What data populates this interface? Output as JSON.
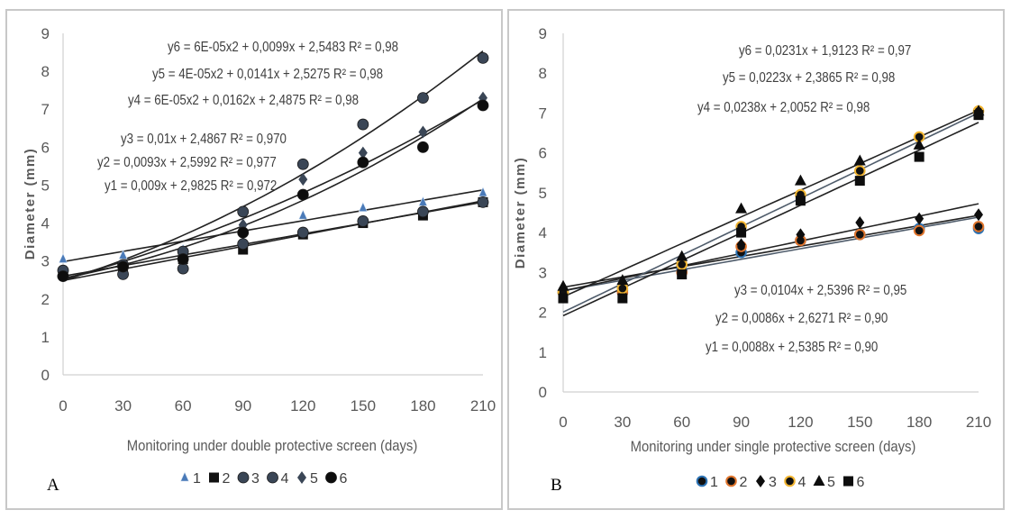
{
  "panels": [
    {
      "letter": "A",
      "xlabel": "Monitoring under double protective screen (days)",
      "ylabel": "Diameter (mm)",
      "legend_labels": [
        "1",
        "2",
        "3",
        "4",
        "5",
        "6"
      ]
    },
    {
      "letter": "B",
      "xlabel": "Monitoring under single protective screen (days)",
      "ylabel": "Diameter (mm)",
      "legend_labels": [
        "1",
        "2",
        "3",
        "4",
        "5",
        "6"
      ]
    }
  ],
  "chart_data": [
    {
      "type": "scatter",
      "title": "",
      "xlabel": "Monitoring under double protective screen (days)",
      "ylabel": "Diameter (mm)",
      "xlim": [
        0,
        210
      ],
      "ylim": [
        0,
        9
      ],
      "xticks": [
        0,
        30,
        60,
        90,
        120,
        150,
        180,
        210
      ],
      "yticks": [
        0,
        1,
        2,
        3,
        4,
        5,
        6,
        7,
        8,
        9
      ],
      "grid": false,
      "legend_position": "bottom",
      "x": [
        0,
        30,
        60,
        90,
        120,
        150,
        180,
        210
      ],
      "series": [
        {
          "name": "1",
          "marker": "triangle-small",
          "color": "#4a7ab8",
          "values": [
            3.05,
            3.15,
            3.3,
            3.75,
            4.2,
            4.4,
            4.55,
            4.8
          ],
          "trendline": {
            "type": "linear",
            "coef": [
              0.009,
              2.9825
            ]
          },
          "equation": "y1 = 0,009x + 2,9825 R² = 0,972"
        },
        {
          "name": "2",
          "marker": "square",
          "color": "#111111",
          "values": [
            2.7,
            2.8,
            3.05,
            3.3,
            3.7,
            4.0,
            4.2,
            4.55
          ],
          "trendline": {
            "type": "linear",
            "coef": [
              0.0093,
              2.5992
            ]
          },
          "equation": "y2 = 0,0093x + 2,5992 R² = 0,977"
        },
        {
          "name": "3",
          "marker": "circle",
          "color": "#3a4656",
          "values": [
            2.75,
            2.65,
            2.8,
            3.45,
            3.75,
            4.05,
            4.3,
            4.55
          ],
          "trendline": {
            "type": "linear",
            "coef": [
              0.01,
              2.4867
            ]
          },
          "equation": "y3 = 0,01x + 2,4867 R² = 0,970"
        },
        {
          "name": "4",
          "marker": "circle",
          "color": "#3a4656",
          "values": [
            2.6,
            2.9,
            3.25,
            4.3,
            5.55,
            6.6,
            7.3,
            8.35
          ],
          "trendline": {
            "type": "poly2",
            "coef": [
              6e-05,
              0.0162,
              2.4875
            ]
          },
          "equation": "y4 = 6E-05x2 + 0,0162x + 2,4875 R² = 0,98"
        },
        {
          "name": "5",
          "marker": "diamond",
          "color": "#3a4656",
          "values": [
            2.65,
            2.85,
            3.15,
            3.95,
            5.15,
            5.85,
            6.4,
            7.3
          ],
          "trendline": {
            "type": "poly2",
            "coef": [
              4e-05,
              0.0141,
              2.5275
            ]
          },
          "equation": "y5 = 4E-05x2 + 0,0141x + 2,5275 R² = 0,98"
        },
        {
          "name": "6",
          "marker": "circle",
          "color": "#0d0d0d",
          "values": [
            2.6,
            2.85,
            3.05,
            3.75,
            4.75,
            5.6,
            6.0,
            7.1
          ],
          "trendline": {
            "type": "poly2",
            "coef": [
              6e-05,
              0.0099,
              2.5483
            ]
          },
          "equation": "y6 = 6E-05x2 + 0,0099x + 2,5483 R² = 0,98"
        }
      ]
    },
    {
      "type": "scatter",
      "title": "",
      "xlabel": "Monitoring under single protective screen (days)",
      "ylabel": "Diameter (mm)",
      "xlim": [
        0,
        210
      ],
      "ylim": [
        0,
        9
      ],
      "xticks": [
        0,
        30,
        60,
        90,
        120,
        150,
        180,
        210
      ],
      "yticks": [
        0,
        1,
        2,
        3,
        4,
        5,
        6,
        7,
        8,
        9
      ],
      "grid": false,
      "legend_position": "bottom",
      "x": [
        0,
        30,
        60,
        90,
        120,
        150,
        180,
        210
      ],
      "series": [
        {
          "name": "1",
          "marker": "circle-ring",
          "color": "#2e74b5",
          "values": [
            2.5,
            2.55,
            3.05,
            3.5,
            3.8,
            3.95,
            4.1,
            4.1
          ],
          "trendline": {
            "type": "linear",
            "coef": [
              0.0088,
              2.5385
            ]
          },
          "equation": "y1 = 0,0088x + 2,5385  R² = 0,90"
        },
        {
          "name": "2",
          "marker": "circle-ring",
          "color": "#e0752d",
          "values": [
            2.5,
            2.5,
            3.0,
            3.65,
            3.8,
            3.95,
            4.05,
            4.15
          ],
          "trendline": {
            "type": "linear",
            "coef": [
              0.0086,
              2.6271
            ]
          },
          "equation": "y2 = 0,0086x + 2,6271 R² = 0,90"
        },
        {
          "name": "3",
          "marker": "diamond",
          "color": "#0d0d0d",
          "values": [
            2.6,
            2.65,
            3.1,
            3.7,
            3.95,
            4.25,
            4.35,
            4.45
          ],
          "trendline": {
            "type": "linear",
            "coef": [
              0.0104,
              2.5396
            ]
          },
          "equation": "y3 = 0,0104x + 2,5396 R² = 0,95"
        },
        {
          "name": "4",
          "marker": "circle-ring",
          "color": "#f2b531",
          "values": [
            2.5,
            2.6,
            3.2,
            4.15,
            4.95,
            5.55,
            6.4,
            7.05
          ],
          "trendline": {
            "type": "linear",
            "coef": [
              0.0238,
              2.0052
            ]
          },
          "equation": "y4 = 0,0238x + 2,0052  R² = 0,98"
        },
        {
          "name": "5",
          "marker": "triangle",
          "color": "#0d0d0d",
          "values": [
            2.65,
            2.8,
            3.4,
            4.6,
            5.3,
            5.8,
            6.2,
            7.05
          ],
          "trendline": {
            "type": "linear",
            "coef": [
              0.0223,
              2.3865
            ]
          },
          "equation": "y5 = 0,0223x + 2,3865 R² = 0,98"
        },
        {
          "name": "6",
          "marker": "square",
          "color": "#0d0d0d",
          "values": [
            2.35,
            2.35,
            2.95,
            4.0,
            4.8,
            5.3,
            5.9,
            6.95
          ],
          "trendline": {
            "type": "linear",
            "coef": [
              0.0231,
              1.9123
            ]
          },
          "equation": "y6 = 0,0231x + 1,9123 R² = 0,97"
        }
      ]
    }
  ]
}
